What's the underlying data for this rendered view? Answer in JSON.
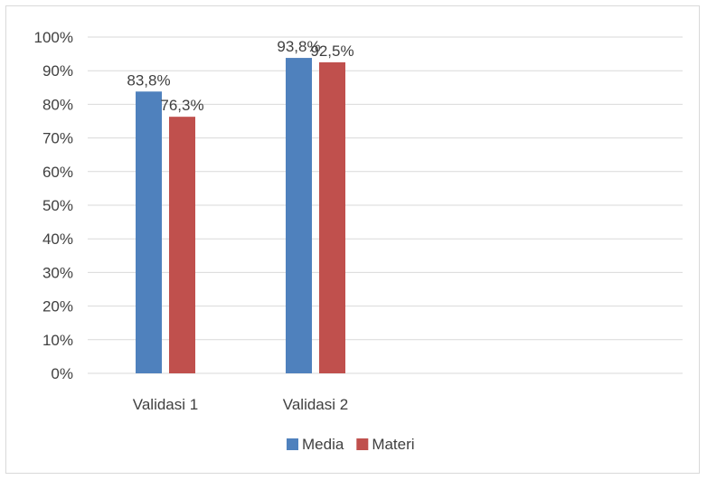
{
  "chart_data": {
    "type": "bar",
    "categories": [
      "Validasi 1",
      "Validasi 2"
    ],
    "series": [
      {
        "name": "Media",
        "values": [
          83.8,
          93.8
        ],
        "labels": [
          "83,8%",
          "93,8%"
        ],
        "color": "#4f81bd"
      },
      {
        "name": "Materi",
        "values": [
          76.3,
          92.5
        ],
        "labels": [
          "76,3%",
          "92,5%"
        ],
        "color": "#c0504d"
      }
    ],
    "ylim": [
      0,
      100
    ],
    "yticks": [
      0,
      10,
      20,
      30,
      40,
      50,
      60,
      70,
      80,
      90,
      100
    ],
    "ytick_labels": [
      "0%",
      "10%",
      "20%",
      "30%",
      "40%",
      "50%",
      "60%",
      "70%",
      "80%",
      "90%",
      "100%"
    ],
    "grid": true,
    "legend": "bottom",
    "title": "",
    "xlabel": "",
    "ylabel": ""
  }
}
